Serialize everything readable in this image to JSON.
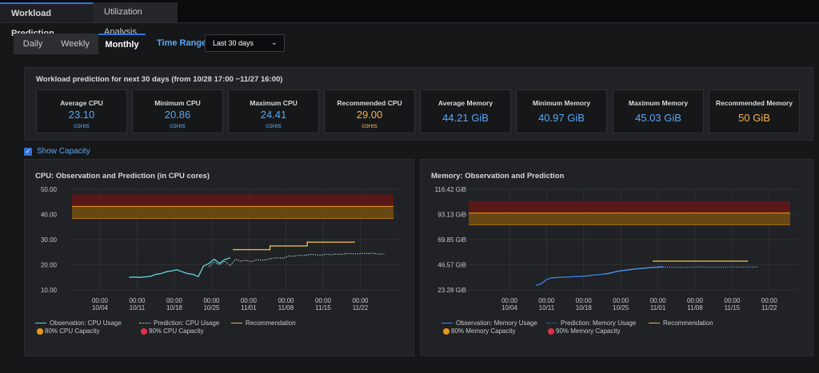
{
  "top_tabs": [
    "Workload Prediction",
    "Utilization Analysis"
  ],
  "period_tabs": [
    "Daily",
    "Weekly",
    "Monthly"
  ],
  "time_range": {
    "label": "Time Range",
    "value": "Last 30 days"
  },
  "summary": {
    "title": "Workload prediction for next 30 days (from 10/28 17:00 ~11/27 16:00)",
    "stats": [
      {
        "label": "Average CPU",
        "value": "23.10",
        "unit": "cores"
      },
      {
        "label": "Minimum CPU",
        "value": "20.86",
        "unit": "cores"
      },
      {
        "label": "Maximum CPU",
        "value": "24.41",
        "unit": "cores"
      },
      {
        "label": "Recommended CPU",
        "value": "29.00",
        "unit": "cores"
      },
      {
        "label": "Average Memory",
        "value": "44.21 GiB",
        "unit": ""
      },
      {
        "label": "Minimum Memory",
        "value": "40.97 GiB",
        "unit": ""
      },
      {
        "label": "Maximum Memory",
        "value": "45.03 GiB",
        "unit": ""
      },
      {
        "label": "Recommended Memory",
        "value": "50 GiB",
        "unit": ""
      }
    ]
  },
  "show_capacity": {
    "label": "Show Capacity",
    "checked": true
  },
  "colors": {
    "accent": "#5aa7f5",
    "recommend": "#e6b84e",
    "obs_cpu": "#62d6e3",
    "pred": "#b8e2f2",
    "obs_mem": "#3a86e8",
    "cap80": "#e89a14",
    "cap90": "#e02f44"
  },
  "chart_data": [
    {
      "type": "line",
      "title": "CPU: Observation and Prediction (in CPU cores)",
      "y_ticks": [
        "50.00",
        "40.00",
        "30.00",
        "20.00",
        "10.00"
      ],
      "ylim": [
        10,
        50
      ],
      "x_ticks": [
        [
          "00:00",
          "10/04"
        ],
        [
          "00:00",
          "10/11"
        ],
        [
          "00:00",
          "10/18"
        ],
        [
          "00:00",
          "10/25"
        ],
        [
          "00:00",
          "11/01"
        ],
        [
          "00:00",
          "11/08"
        ],
        [
          "00:00",
          "11/15"
        ],
        [
          "00:00",
          "11/22"
        ]
      ],
      "xlim_days": [
        0,
        49
      ],
      "capacity_bands": [
        {
          "name": "90% CPU Capacity",
          "from": 43.2,
          "to": 48
        },
        {
          "name": "80% CPU Capacity",
          "from": 38.4,
          "to": 43.2
        }
      ],
      "series": [
        {
          "name": "Observation: CPU Usage",
          "style": "solid",
          "points": [
            [
              5.5,
              15
            ],
            [
              6.5,
              15.1
            ],
            [
              7.5,
              15
            ],
            [
              8.5,
              15.2
            ],
            [
              9.5,
              15.4
            ],
            [
              10.5,
              16.2
            ],
            [
              11.5,
              16.5
            ],
            [
              12.5,
              17.2
            ],
            [
              13.5,
              17.6
            ],
            [
              14.5,
              18
            ],
            [
              15.5,
              17.2
            ],
            [
              16.5,
              16.5
            ],
            [
              17.5,
              16.2
            ],
            [
              18.5,
              15.3
            ],
            [
              19.5,
              19.5
            ],
            [
              20.5,
              20.5
            ],
            [
              21.5,
              22.2
            ],
            [
              22.5,
              20.6
            ],
            [
              23.5,
              22.1
            ],
            [
              24.5,
              22.8
            ]
          ]
        },
        {
          "name": "Prediction: CPU Usage",
          "style": "dotted",
          "points": [
            [
              20.5,
              19.2
            ],
            [
              21.5,
              21
            ],
            [
              22.5,
              20
            ],
            [
              23.5,
              21.5
            ],
            [
              24.5,
              19.6
            ],
            [
              25.5,
              22.2
            ],
            [
              26.5,
              21.5
            ],
            [
              27.5,
              21.8
            ],
            [
              28.5,
              21.2
            ],
            [
              29.5,
              22
            ],
            [
              30.5,
              21.8
            ],
            [
              31.5,
              22.1
            ],
            [
              32.5,
              22.6
            ],
            [
              33.5,
              22.8
            ],
            [
              34.5,
              22.6
            ],
            [
              35.5,
              23.5
            ],
            [
              36.5,
              23.4
            ],
            [
              37.5,
              23.8
            ],
            [
              38.5,
              23.7
            ],
            [
              39.5,
              24.1
            ],
            [
              40.5,
              24
            ],
            [
              41.5,
              23.8
            ],
            [
              42.5,
              24.2
            ],
            [
              43.5,
              24
            ],
            [
              44.5,
              24.3
            ],
            [
              45.5,
              24.1
            ],
            [
              46.5,
              24.5
            ],
            [
              47.5,
              24.4
            ],
            [
              48.5,
              24.3
            ],
            [
              49.5,
              24.6
            ],
            [
              50.5,
              24.4
            ],
            [
              51.5,
              24.6
            ],
            [
              52.5,
              24.2
            ],
            [
              53.5,
              24.4
            ]
          ]
        },
        {
          "name": "Recommendation",
          "style": "step",
          "points": [
            [
              25,
              26
            ],
            [
              32,
              26
            ],
            [
              32,
              27.5
            ],
            [
              39,
              27.5
            ],
            [
              39,
              29
            ],
            [
              48,
              29
            ]
          ]
        }
      ],
      "legend": [
        "Observation: CPU Usage",
        "Prediction: CPU Usage",
        "Recommendation",
        "80% CPU Capacity",
        "90% CPU Capacity"
      ]
    },
    {
      "type": "line",
      "title": "Memory: Observation and Prediction",
      "y_ticks": [
        "116.42 GiB",
        "93.13 GiB",
        "69.85 GiB",
        "46.57 GiB",
        "23.28 GiB"
      ],
      "ylim": [
        23.28,
        116.42
      ],
      "x_ticks": [
        [
          "00:00",
          "10/04"
        ],
        [
          "00:00",
          "10/11"
        ],
        [
          "00:00",
          "10/18"
        ],
        [
          "00:00",
          "10/25"
        ],
        [
          "00:00",
          "11/01"
        ],
        [
          "00:00",
          "11/08"
        ],
        [
          "00:00",
          "11/15"
        ],
        [
          "00:00",
          "11/22"
        ]
      ],
      "xlim_days": [
        0,
        49
      ],
      "capacity_bands": [
        {
          "name": "90% Memory Capacity",
          "from": 94.5,
          "to": 105.5
        },
        {
          "name": "80% Memory Capacity",
          "from": 83.5,
          "to": 94.5
        }
      ],
      "series": [
        {
          "name": "Observation: Memory Usage",
          "style": "solid",
          "points": [
            [
              5,
              27.5
            ],
            [
              6,
              29
            ],
            [
              7,
              33
            ],
            [
              8,
              34.5
            ],
            [
              10,
              35
            ],
            [
              12,
              35.5
            ],
            [
              14,
              36
            ],
            [
              16,
              37
            ],
            [
              18,
              38
            ],
            [
              19,
              39
            ],
            [
              20,
              40
            ],
            [
              21,
              41
            ],
            [
              22,
              41.5
            ],
            [
              23,
              42.3
            ],
            [
              24,
              42.8
            ],
            [
              25,
              43.3
            ],
            [
              26,
              43.7
            ],
            [
              27,
              44.1
            ],
            [
              28,
              44.5
            ],
            [
              29,
              45
            ]
          ]
        },
        {
          "name": "Prediction: Memory Usage",
          "style": "dotted",
          "points": [
            [
              18,
              38
            ],
            [
              19,
              38.6
            ],
            [
              20,
              40.5
            ],
            [
              21,
              41.2
            ],
            [
              22,
              41.8
            ],
            [
              23,
              42.3
            ],
            [
              24,
              42.8
            ],
            [
              25,
              43
            ],
            [
              26,
              43.5
            ],
            [
              27,
              44
            ],
            [
              28,
              44.3
            ],
            [
              29,
              44.2
            ],
            [
              30,
              44.5
            ],
            [
              31,
              44.4
            ],
            [
              32,
              44.1
            ],
            [
              33,
              44.3
            ],
            [
              34,
              44.5
            ],
            [
              35,
              44.4
            ],
            [
              36,
              44.6
            ],
            [
              37,
              44.5
            ],
            [
              38,
              44.2
            ],
            [
              39,
              44.4
            ],
            [
              40,
              44.3
            ],
            [
              41,
              44.5
            ],
            [
              42,
              44.6
            ],
            [
              43,
              44.4
            ],
            [
              44,
              44.5
            ],
            [
              45,
              44.6
            ],
            [
              46,
              44.4
            ],
            [
              47,
              44.7
            ]
          ]
        },
        {
          "name": "Recommendation",
          "style": "step",
          "points": [
            [
              27,
              50
            ],
            [
              45,
              50
            ]
          ]
        }
      ],
      "legend": [
        "Observation: Memory Usage",
        "Prediction: Memory Usage",
        "Recommendation",
        "80% Memory Capacity",
        "90% Memory Capacity"
      ]
    }
  ]
}
